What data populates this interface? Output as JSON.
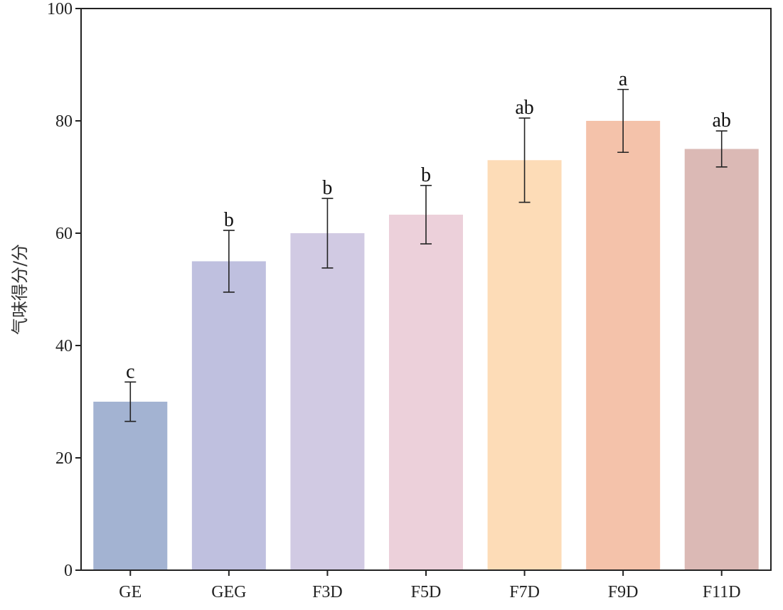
{
  "chart_data": {
    "type": "bar",
    "title": "",
    "xlabel": "",
    "ylabel": "气味得分/分",
    "ylim": [
      0,
      100
    ],
    "yticks": [
      0,
      20,
      40,
      60,
      80,
      100
    ],
    "grid": false,
    "categories": [
      "GE",
      "GEG",
      "F3D",
      "F5D",
      "F7D",
      "F9D",
      "F11D"
    ],
    "values": [
      30,
      55,
      60,
      63.3,
      73,
      80,
      75
    ],
    "errors": [
      3.5,
      5.5,
      6.2,
      5.2,
      7.5,
      5.6,
      3.2
    ],
    "significance": [
      "c",
      "b",
      "b",
      "b",
      "ab",
      "a",
      "ab"
    ],
    "colors": [
      "#a3b3d2",
      "#bfc0df",
      "#d1cae3",
      "#ecd0da",
      "#fddcb7",
      "#f4c2aa",
      "#dbb9b5"
    ]
  }
}
